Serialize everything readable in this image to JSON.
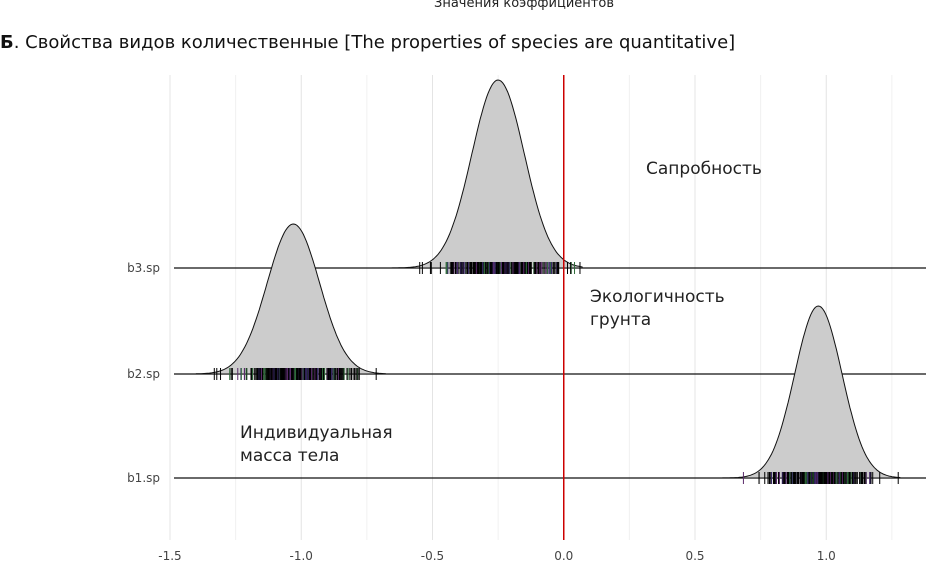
{
  "header": {
    "top_axis_label": "Значения коэффициентов",
    "panel_letter": "Б",
    "panel_title": ". Свойства видов количественные [The properties of species are quantitative]"
  },
  "chart_data": {
    "type": "density",
    "xlim": [
      -1.5,
      1.38
    ],
    "x_ticks": [
      -1.5,
      -1.0,
      -0.5,
      0.0,
      0.5,
      1.0
    ],
    "x_tick_labels": [
      "-1.5",
      "-1.0",
      "-0.5",
      "0.0",
      "0.5",
      "1.0"
    ],
    "reference_line": {
      "x": 0.0,
      "color": "#cc0000"
    },
    "grid": true,
    "fill_color": "#cccccc",
    "series": [
      {
        "name": "b3.sp",
        "annotation": [
          "Сапробность"
        ],
        "density": {
          "mean": -0.25,
          "sd": 0.1,
          "range": [
            -0.67,
            0.07
          ]
        }
      },
      {
        "name": "b2.sp",
        "annotation": [
          "Экологичность",
          "грунта"
        ],
        "density": {
          "mean": -1.03,
          "sd": 0.1,
          "range": [
            -1.4,
            -0.68
          ]
        }
      },
      {
        "name": "b1.sp",
        "annotation": [
          "Индивидуальная",
          "масса тела"
        ],
        "density": {
          "mean": 0.97,
          "sd": 0.09,
          "range": [
            0.59,
            1.28
          ]
        }
      }
    ]
  }
}
